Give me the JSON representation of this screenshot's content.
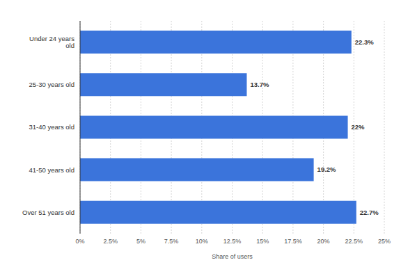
{
  "chart_data": {
    "type": "bar",
    "orientation": "horizontal",
    "x_label": "Share of users",
    "categories": [
      "Under 24 years old",
      "25-30 years old",
      "31-40 years old",
      "41-50 years old",
      "Over 51 years old"
    ],
    "values": [
      22.3,
      13.7,
      22,
      19.2,
      22.7
    ],
    "value_labels": [
      "22.3%",
      "13.7%",
      "22%",
      "19.2%",
      "22.7%"
    ],
    "data_labels": true,
    "color": "#3b74db",
    "xlim": [
      0,
      25
    ],
    "xticks": [
      {
        "value": 0,
        "label": "0%"
      },
      {
        "value": 2.5,
        "label": "2.5%"
      },
      {
        "value": 5,
        "label": "5%"
      },
      {
        "value": 7.5,
        "label": "7.5%"
      },
      {
        "value": 10,
        "label": "10%"
      },
      {
        "value": 12.5,
        "label": "12.5%"
      },
      {
        "value": 15,
        "label": "15%"
      },
      {
        "value": 17.5,
        "label": "17.5%"
      },
      {
        "value": 20,
        "label": "20%"
      },
      {
        "value": 22.5,
        "label": "22.5%"
      },
      {
        "value": 25,
        "label": "25%"
      }
    ],
    "grid": true
  }
}
